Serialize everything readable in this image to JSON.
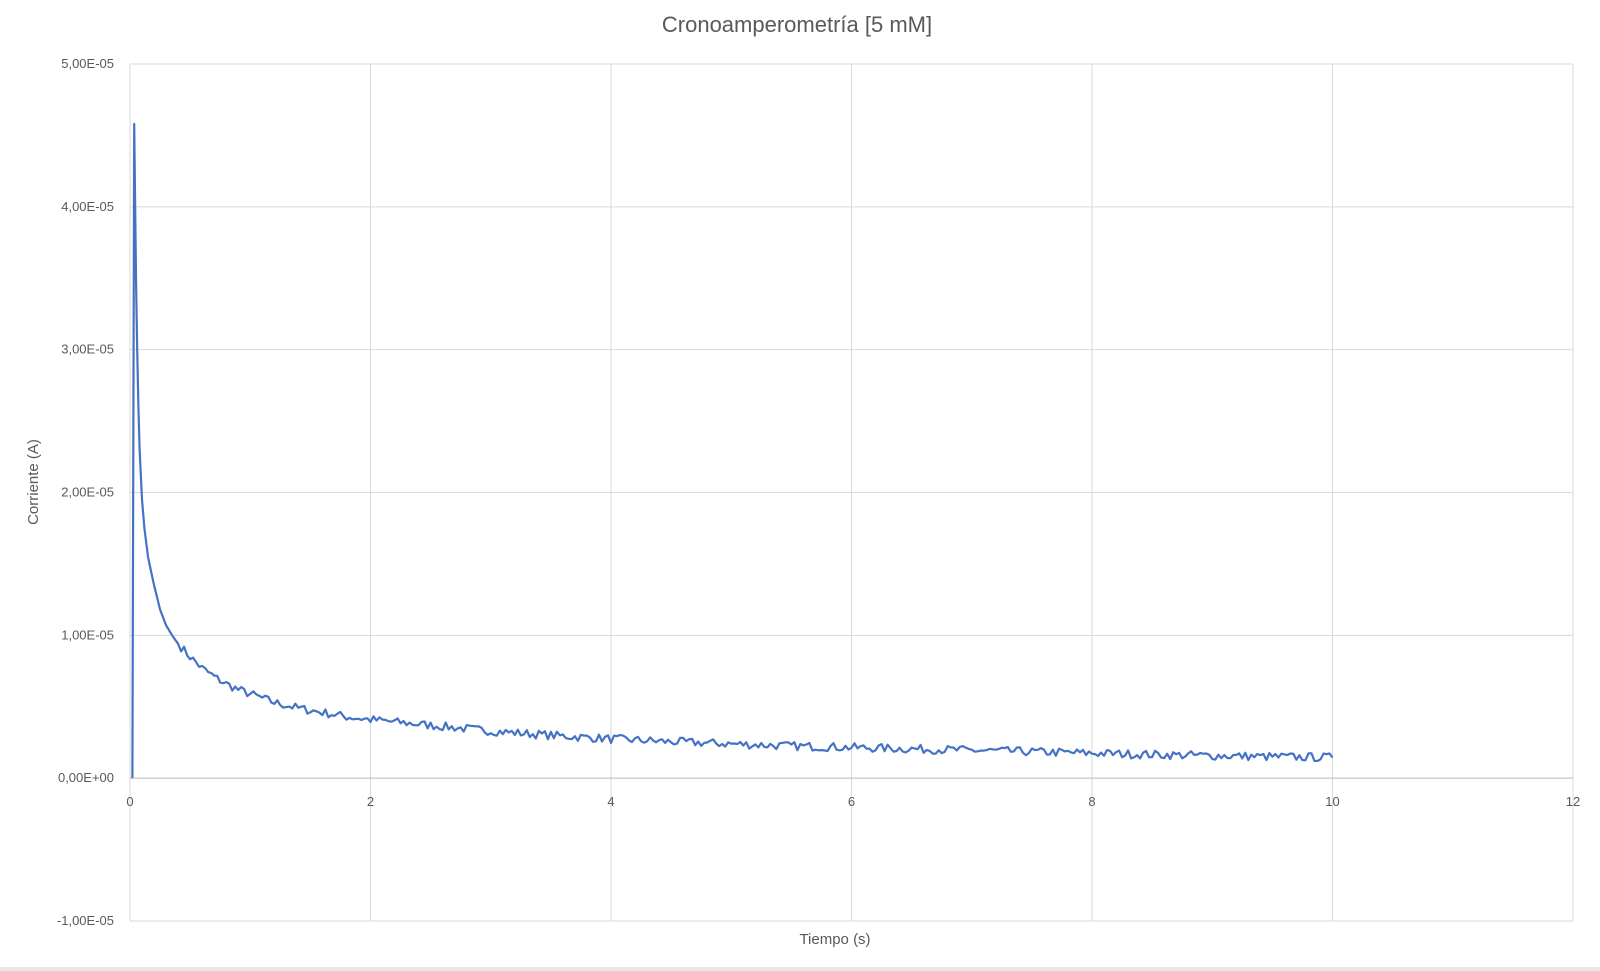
{
  "chart_data": {
    "type": "line",
    "title": "Cronoamperometría [5 mM]",
    "xlabel": "Tiempo (s)",
    "ylabel": "Corriente (A)",
    "xlim": [
      0,
      12
    ],
    "ylim": [
      -1e-05,
      5e-05
    ],
    "x_ticks": [
      0,
      2,
      4,
      6,
      8,
      10,
      12
    ],
    "x_tick_labels": [
      "0",
      "2",
      "4",
      "6",
      "8",
      "10",
      "12"
    ],
    "y_ticks": [
      -1e-05,
      0,
      1e-05,
      2e-05,
      3e-05,
      4e-05,
      5e-05
    ],
    "y_tick_labels": [
      "-1,00E-05",
      "0,00E+00",
      "1,00E-05",
      "2,00E-05",
      "3,00E-05",
      "4,00E-05",
      "5,00E-05"
    ],
    "grid": true,
    "legend": "none",
    "series_color": "#4472c4",
    "series": [
      {
        "x": [
          0.02,
          0.035,
          0.05,
          0.06,
          0.07,
          0.08,
          0.1,
          0.12,
          0.15,
          0.2,
          0.25,
          0.3,
          0.35,
          0.4,
          0.5,
          0.6,
          0.7,
          0.8,
          0.9,
          1.0,
          1.2,
          1.4,
          1.6,
          1.8,
          2.0,
          2.5,
          3.0,
          3.5,
          4.0,
          4.5,
          5.0,
          5.5,
          6.0,
          6.5,
          7.0,
          7.5,
          8.0,
          8.5,
          9.0,
          9.5,
          10.0
        ],
        "y": [
          0.0,
          4.58e-05,
          3.5e-05,
          3e-05,
          2.6e-05,
          2.3e-05,
          1.95e-05,
          1.75e-05,
          1.55e-05,
          1.35e-05,
          1.18e-05,
          1.07e-05,
          1e-05,
          9.4e-06,
          8.5e-06,
          7.7e-06,
          7.1e-06,
          6.6e-06,
          6.2e-06,
          5.9e-06,
          5.3e-06,
          4.9e-06,
          4.6e-06,
          4.3e-06,
          4.1e-06,
          3.7e-06,
          3.3e-06,
          3e-06,
          2.75e-06,
          2.55e-06,
          2.4e-06,
          2.25e-06,
          2.15e-06,
          2.05e-06,
          1.95e-06,
          1.85e-06,
          1.75e-06,
          1.65e-06,
          1.58e-06,
          1.5e-06,
          1.45e-06
        ]
      }
    ]
  }
}
